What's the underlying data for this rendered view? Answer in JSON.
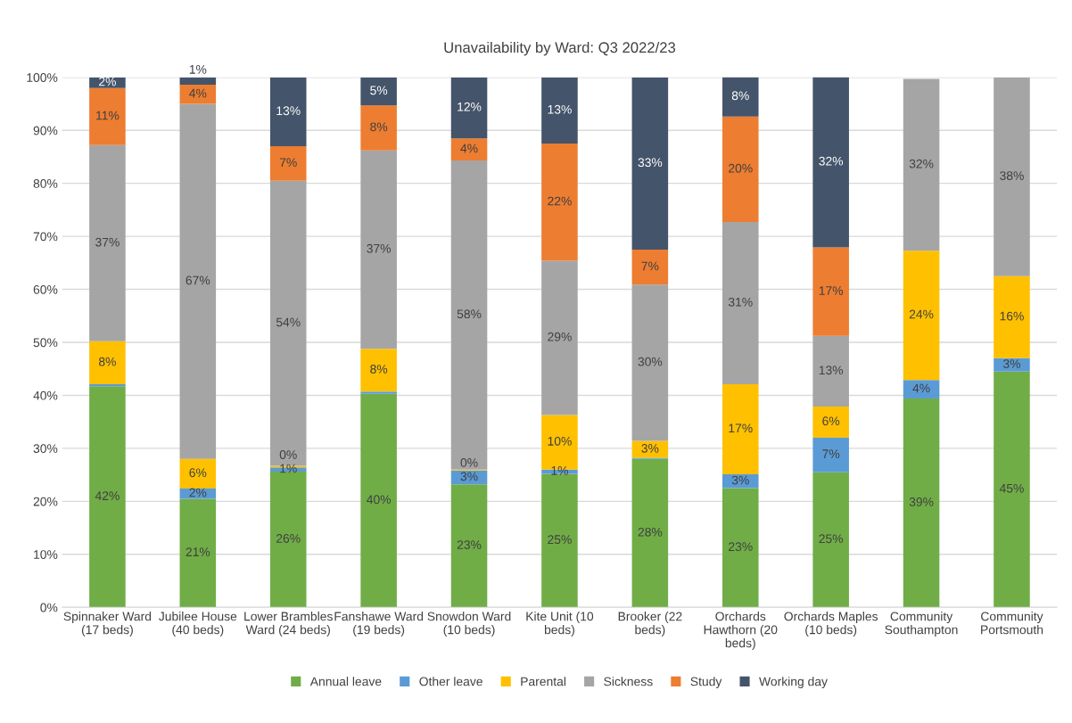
{
  "chart_data": {
    "type": "bar",
    "stacked": true,
    "title": "Unavailability by Ward: Q3 2022/23",
    "categories": [
      "Spinnaker Ward (17 beds)",
      "Jubilee House (40 beds)",
      "Lower Brambles Ward (24 beds)",
      "Fanshawe Ward (19 beds)",
      "Snowdon Ward (10 beds)",
      "Kite Unit (10 beds)",
      "Brooker (22 beds)",
      "Orchards Hawthorn (20 beds)",
      "Orchards Maples (10 beds)",
      "Community Southampton",
      "Community Portsmouth"
    ],
    "series": [
      {
        "name": "Annual leave",
        "color": "#70ad47",
        "values": [
          41.7,
          20.5,
          25.6,
          40.3,
          23.2,
          25.2,
          28.0,
          22.5,
          25.5,
          39.4,
          44.5
        ],
        "value_labels": [
          "42%",
          "21%",
          "26%",
          "40%",
          "23%",
          "25%",
          "28%",
          "23%",
          "25%",
          "39%",
          "45%"
        ]
      },
      {
        "name": "Other leave",
        "color": "#5b9bd5",
        "values": [
          0.4,
          1.9,
          0.8,
          0.4,
          2.6,
          0.8,
          0.2,
          2.6,
          6.5,
          3.5,
          2.5
        ],
        "value_labels": [
          null,
          "2%",
          "1%",
          null,
          "3%",
          "1%",
          null,
          "3%",
          "7%",
          "4%",
          "3%"
        ]
      },
      {
        "name": "Parental",
        "color": "#ffc000",
        "values": [
          8.1,
          5.6,
          0.3,
          8.1,
          0.2,
          10.3,
          3.2,
          17.0,
          5.9,
          24.4,
          15.5
        ],
        "value_labels": [
          "8%",
          "6%",
          "0%",
          "8%",
          "0%",
          "10%",
          "3%",
          "17%",
          "6%",
          "24%",
          "16%"
        ]
      },
      {
        "name": "Sickness",
        "color": "#a5a5a5",
        "values": [
          37.0,
          67.0,
          53.8,
          37.4,
          58.3,
          29.1,
          29.5,
          30.6,
          13.3,
          32.4,
          37.5
        ],
        "value_labels": [
          "37%",
          "67%",
          "54%",
          "37%",
          "58%",
          "29%",
          "30%",
          "31%",
          "13%",
          "32%",
          "38%"
        ]
      },
      {
        "name": "Study",
        "color": "#ed7d31",
        "values": [
          10.8,
          3.6,
          6.5,
          8.5,
          4.2,
          22.1,
          6.6,
          19.9,
          16.7,
          null,
          null
        ],
        "value_labels": [
          "11%",
          "4%",
          "7%",
          "8%",
          "4%",
          "22%",
          "7%",
          "20%",
          "17%",
          null,
          null
        ]
      },
      {
        "name": "Working day",
        "color": "#44546a",
        "values": [
          2.0,
          1.4,
          13.0,
          5.3,
          11.5,
          12.5,
          32.5,
          7.5,
          32.2,
          null,
          null
        ],
        "value_labels": [
          "2%",
          "1%",
          "13%",
          "5%",
          "12%",
          "13%",
          "33%",
          "8%",
          "32%",
          null,
          null
        ]
      }
    ],
    "ylim": [
      0,
      100
    ],
    "yticks": [
      {
        "value": 0,
        "label": "0%"
      },
      {
        "value": 10,
        "label": "10%"
      },
      {
        "value": 20,
        "label": "20%"
      },
      {
        "value": 30,
        "label": "30%"
      },
      {
        "value": 40,
        "label": "40%"
      },
      {
        "value": 50,
        "label": "50%"
      },
      {
        "value": 60,
        "label": "60%"
      },
      {
        "value": 70,
        "label": "70%"
      },
      {
        "value": 80,
        "label": "80%"
      },
      {
        "value": 90,
        "label": "90%"
      },
      {
        "value": 100,
        "label": "100%"
      }
    ],
    "grid": "y",
    "legend": "bottom"
  }
}
